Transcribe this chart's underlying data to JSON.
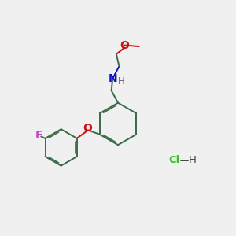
{
  "bg_color": "#f0f0f0",
  "bond_color": "#3a6b47",
  "bond_width": 1.4,
  "N_color": "#1010cc",
  "O_color": "#cc1010",
  "F_color": "#cc44cc",
  "Cl_color": "#22cc22",
  "text_fontsize": 8.5,
  "fig_width": 3.0,
  "fig_height": 3.0,
  "dpi": 100,
  "xlim": [
    0,
    10
  ],
  "ylim": [
    0,
    10
  ]
}
